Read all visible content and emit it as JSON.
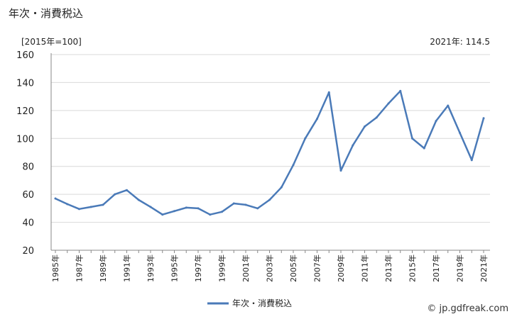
{
  "title": "年次・消費税込",
  "unit_label": "[2015年=100]",
  "latest_label": "2021年: 114.5",
  "watermark": "© jp.gdfreak.com",
  "colors": {
    "line": "#4a7ab8",
    "grid": "#d9d9d9",
    "axis": "#888888"
  },
  "chart_data": {
    "type": "line",
    "title": "年次・消費税込",
    "ylabel": "[2015年=100]",
    "ylim": [
      20,
      160
    ],
    "yticks": [
      "20",
      "40",
      "60",
      "80",
      "100",
      "120",
      "140",
      "160"
    ],
    "grid": true,
    "legend_position": "bottom",
    "x": [
      "1985年",
      "1986年",
      "1987年",
      "1988年",
      "1989年",
      "1990年",
      "1991年",
      "1992年",
      "1993年",
      "1994年",
      "1995年",
      "1996年",
      "1997年",
      "1998年",
      "1999年",
      "2000年",
      "2001年",
      "2002年",
      "2003年",
      "2004年",
      "2005年",
      "2006年",
      "2007年",
      "2008年",
      "2009年",
      "2010年",
      "2011年",
      "2012年",
      "2013年",
      "2014年",
      "2015年",
      "2016年",
      "2017年",
      "2018年",
      "2019年",
      "2020年",
      "2021年"
    ],
    "x_tick_labels": [
      "1985年",
      "1987年",
      "1989年",
      "1991年",
      "1993年",
      "1995年",
      "1997年",
      "1999年",
      "2001年",
      "2003年",
      "2005年",
      "2007年",
      "2009年",
      "2011年",
      "2013年",
      "2015年",
      "2017年",
      "2019年",
      "2021年"
    ],
    "series": [
      {
        "name": "年次・消費税込",
        "values": [
          57,
          53,
          49.5,
          51,
          52.5,
          60,
          63,
          56,
          51,
          45.5,
          48,
          50.5,
          50,
          45.5,
          47.5,
          53.5,
          52.5,
          50,
          56,
          65,
          81,
          100,
          114,
          133,
          77,
          95,
          108.5,
          115,
          125,
          134,
          100,
          93,
          112.5,
          123.5,
          104,
          84.5,
          114.5
        ]
      }
    ]
  }
}
